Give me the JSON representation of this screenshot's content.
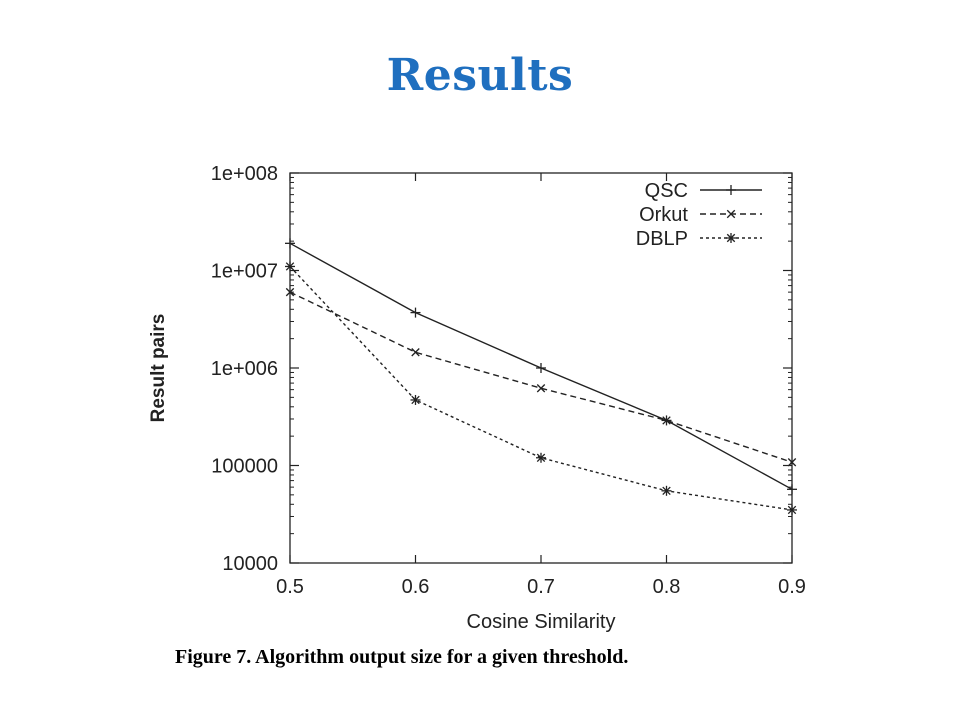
{
  "slide": {
    "title": "Results",
    "caption": "Figure 7.  Algorithm output size for a given threshold."
  },
  "chart_data": {
    "type": "line",
    "xlabel": "Cosine Similarity",
    "ylabel": "Result pairs",
    "x": [
      0.5,
      0.6,
      0.7,
      0.8,
      0.9
    ],
    "xlim": [
      0.5,
      0.9
    ],
    "ylim": [
      10000,
      100000000
    ],
    "yscale": "log",
    "x_ticks": [
      "0.5",
      "0.6",
      "0.7",
      "0.8",
      "0.9"
    ],
    "y_ticks": [
      {
        "value": 10000,
        "label": "10000"
      },
      {
        "value": 100000,
        "label": "100000"
      },
      {
        "value": 1000000,
        "label": "1e+006"
      },
      {
        "value": 10000000,
        "label": "1e+007"
      },
      {
        "value": 100000000,
        "label": "1e+008"
      }
    ],
    "grid": false,
    "legend_position": "top-right",
    "series": [
      {
        "name": "QSC",
        "marker": "plus",
        "dash": "solid",
        "values": [
          19000000,
          3700000,
          1000000,
          290000,
          57000
        ]
      },
      {
        "name": "Orkut",
        "marker": "cross",
        "dash": "dashed",
        "values": [
          6000000,
          1450000,
          620000,
          290000,
          108000
        ]
      },
      {
        "name": "DBLP",
        "marker": "star",
        "dash": "dotted",
        "values": [
          11000000,
          470000,
          120000,
          55000,
          35000
        ]
      }
    ]
  }
}
